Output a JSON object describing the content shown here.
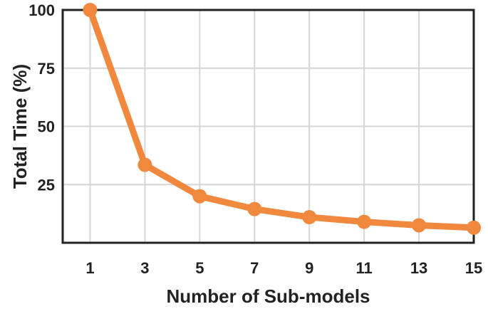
{
  "chart_data": {
    "type": "line",
    "title": "",
    "xlabel": "Number of Sub-models",
    "ylabel": "Total Time (%)",
    "x": [
      1,
      3,
      5,
      7,
      9,
      11,
      13,
      15
    ],
    "xticks": [
      1,
      3,
      5,
      7,
      9,
      11,
      13,
      15
    ],
    "xlim": [
      0,
      15
    ],
    "yticks": [
      25,
      50,
      75,
      100
    ],
    "ylim": [
      0,
      100
    ],
    "grid": true,
    "series": [
      {
        "values": [
          100,
          33.5,
          20,
          14.5,
          11,
          9,
          7.5,
          6.5
        ]
      }
    ],
    "colors": {
      "series": "#f0883e",
      "grid": "#d6d6d6",
      "axes": "#222222"
    }
  }
}
